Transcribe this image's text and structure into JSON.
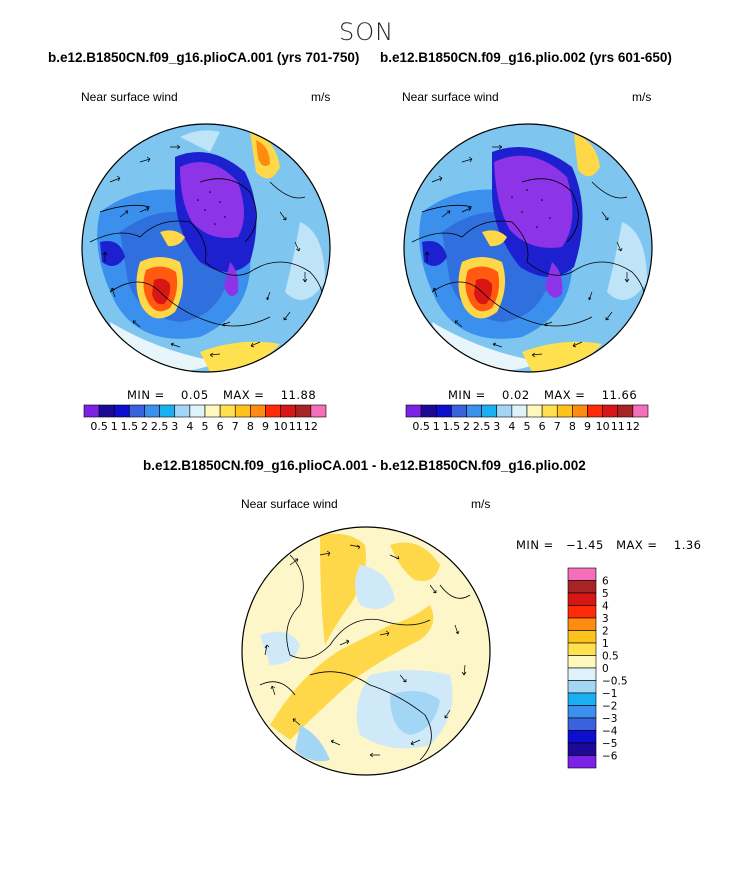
{
  "figure": {
    "season": "SON",
    "panels": [
      {
        "title": "b.e12.B1850CN.f09_g16.plioCA.001 (yrs 701-750)",
        "variable": "Near surface wind",
        "units": "m/s",
        "min_label": "MIN =",
        "min_value": "0.05",
        "max_label": "MAX =",
        "max_value": "11.88"
      },
      {
        "title": "b.e12.B1850CN.f09_g16.plio.002 (yrs 601-650)",
        "variable": "Near surface wind",
        "units": "m/s",
        "min_label": "MIN =",
        "min_value": "0.02",
        "max_label": "MAX =",
        "max_value": "11.66"
      },
      {
        "title": "b.e12.B1850CN.f09_g16.plioCA.001 - b.e12.B1850CN.f09_g16.plio.002",
        "variable": "Near surface wind",
        "units": "m/s",
        "min_label": "MIN =",
        "min_value": "−1.45",
        "max_label": "MAX =",
        "max_value": "1.36"
      }
    ]
  },
  "chart_data": [
    {
      "type": "heatmap",
      "title": "b.e12.B1850CN.f09_g16.plioCA.001 (yrs 701-750)",
      "variable": "Near surface wind",
      "units": "m/s",
      "min": 0.05,
      "max": 11.88,
      "colorbar": {
        "orientation": "horizontal",
        "levels": [
          0.5,
          1,
          1.5,
          2,
          2.5,
          3,
          4,
          5,
          6,
          7,
          8,
          9,
          10,
          11,
          12
        ],
        "labels": [
          "0.5",
          "1",
          "1.5",
          "2",
          "2.5",
          "3",
          "4",
          "5",
          "6",
          "7",
          "8",
          "9",
          "10",
          "11",
          "12"
        ],
        "colors": [
          "#7b22e6",
          "#1c0a96",
          "#0c0fcf",
          "#3a62dc",
          "#3a90ec",
          "#19b0f2",
          "#a3d6f5",
          "#dff2fb",
          "#fff8be",
          "#ffe14f",
          "#ffc21a",
          "#ff8c10",
          "#ff2b08",
          "#d91616",
          "#a82424",
          "#f56eba"
        ]
      }
    },
    {
      "type": "heatmap",
      "title": "b.e12.B1850CN.f09_g16.plio.002 (yrs 601-650)",
      "variable": "Near surface wind",
      "units": "m/s",
      "min": 0.02,
      "max": 11.66,
      "colorbar": {
        "orientation": "horizontal",
        "levels": [
          0.5,
          1,
          1.5,
          2,
          2.5,
          3,
          4,
          5,
          6,
          7,
          8,
          9,
          10,
          11,
          12
        ],
        "labels": [
          "0.5",
          "1",
          "1.5",
          "2",
          "2.5",
          "3",
          "4",
          "5",
          "6",
          "7",
          "8",
          "9",
          "10",
          "11",
          "12"
        ],
        "colors": [
          "#7b22e6",
          "#1c0a96",
          "#0c0fcf",
          "#3a62dc",
          "#3a90ec",
          "#19b0f2",
          "#a3d6f5",
          "#dff2fb",
          "#fff8be",
          "#ffe14f",
          "#ffc21a",
          "#ff8c10",
          "#ff2b08",
          "#d91616",
          "#a82424",
          "#f56eba"
        ]
      }
    },
    {
      "type": "heatmap",
      "title": "b.e12.B1850CN.f09_g16.plioCA.001 - b.e12.B1850CN.f09_g16.plio.002",
      "variable": "Near surface wind",
      "units": "m/s",
      "min": -1.45,
      "max": 1.36,
      "colorbar": {
        "orientation": "vertical",
        "levels": [
          6,
          5,
          4,
          3,
          2,
          1,
          0.5,
          0,
          -0.5,
          -1,
          -2,
          -3,
          -4,
          -5,
          -6
        ],
        "labels": [
          "6",
          "5",
          "4",
          "3",
          "2",
          "1",
          "0.5",
          "0",
          "−0.5",
          "−1",
          "−2",
          "−3",
          "−4",
          "−5",
          "−6"
        ],
        "colors": [
          "#f56eba",
          "#a82424",
          "#d91616",
          "#ff2b08",
          "#ff8c10",
          "#ffc21a",
          "#ffe14f",
          "#fff8be",
          "#dff2fb",
          "#a3d6f5",
          "#19b0f2",
          "#3a90ec",
          "#3a62dc",
          "#0c0fcf",
          "#1c0a96",
          "#7b22e6"
        ]
      }
    }
  ]
}
